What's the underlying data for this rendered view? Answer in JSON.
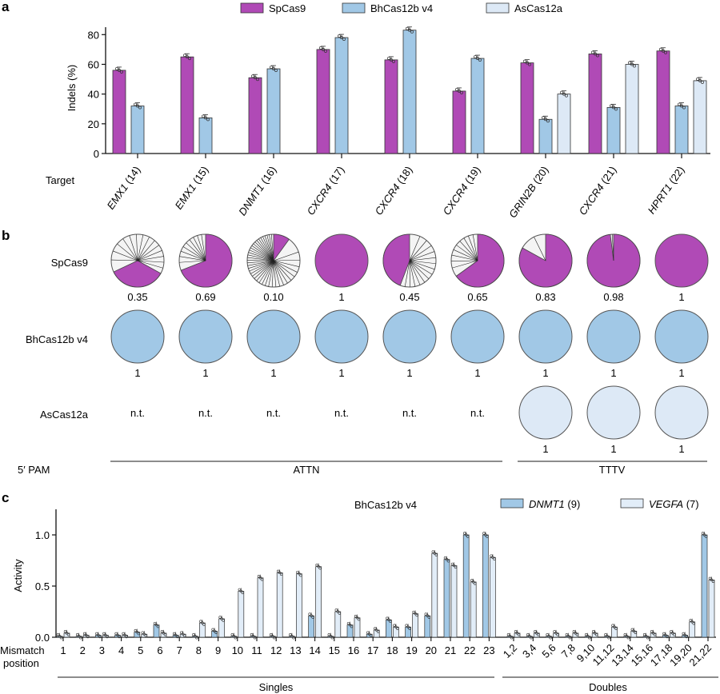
{
  "colors": {
    "spcas9": "#b04ab6",
    "bhcas12b": "#a1c8e6",
    "ascas12a": "#dde9f6",
    "dnmt1": "#a1c8e6",
    "vegfa": "#e2edf8",
    "other_allele": "#f4f4f4"
  },
  "chart_data": [
    {
      "panel": "a",
      "type": "bar",
      "ylabel": "Indels (%)",
      "xlabel": "Target",
      "ylim": [
        0,
        85
      ],
      "yticks": [
        0,
        20,
        40,
        60,
        80
      ],
      "legend": [
        "SpCas9",
        "BhCas12b v4",
        "AsCas12a"
      ],
      "legend_position": "top",
      "categories": [
        {
          "gene": "EMX1",
          "site": "(14)"
        },
        {
          "gene": "EMX1",
          "site": "(15)"
        },
        {
          "gene": "DNMT1",
          "site": "(16)"
        },
        {
          "gene": "CXCR4",
          "site": "(17)"
        },
        {
          "gene": "CXCR4",
          "site": "(18)"
        },
        {
          "gene": "CXCR4",
          "site": "(19)"
        },
        {
          "gene": "GRIN2B",
          "site": "(20)"
        },
        {
          "gene": "CXCR4",
          "site": "(21)"
        },
        {
          "gene": "HPRT1",
          "site": "(22)"
        }
      ],
      "series": [
        {
          "name": "SpCas9",
          "values": [
            56,
            65,
            51,
            70,
            63,
            42,
            61,
            67,
            69
          ]
        },
        {
          "name": "BhCas12b v4",
          "values": [
            32,
            24,
            57,
            78,
            83,
            64,
            23,
            31,
            32
          ]
        },
        {
          "name": "AsCas12a",
          "values": [
            null,
            null,
            null,
            null,
            null,
            null,
            40,
            60,
            49
          ]
        }
      ]
    },
    {
      "panel": "b",
      "type": "pie",
      "description": "Fraction of indel reads that are the major outcome",
      "row_labels": [
        "SpCas9",
        "BhCas12b v4",
        "AsCas12a"
      ],
      "rows": [
        {
          "name": "SpCas9",
          "values": [
            "0.35",
            "0.69",
            "0.10",
            "1",
            "0.45",
            "0.65",
            "0.83",
            "0.98",
            "1"
          ],
          "fractions": [
            0.35,
            0.69,
            0.1,
            1,
            0.45,
            0.65,
            0.83,
            0.98,
            1
          ]
        },
        {
          "name": "BhCas12b v4",
          "values": [
            "1",
            "1",
            "1",
            "1",
            "1",
            "1",
            "1",
            "1",
            "1"
          ],
          "fractions": [
            1,
            1,
            1,
            1,
            1,
            1,
            1,
            1,
            1
          ]
        },
        {
          "name": "AsCas12a",
          "values": [
            "n.t.",
            "n.t.",
            "n.t.",
            "n.t.",
            "n.t.",
            "n.t.",
            "1",
            "1",
            "1"
          ],
          "fractions": [
            null,
            null,
            null,
            null,
            null,
            null,
            1,
            1,
            1
          ]
        }
      ],
      "pam_label": "5′ PAM",
      "pam_groups": [
        {
          "label": "ATTN",
          "count": 6
        },
        {
          "label": "TTTV",
          "count": 3
        }
      ]
    },
    {
      "panel": "c",
      "type": "bar",
      "title": "BhCas12b v4",
      "ylabel": "Activity",
      "xlabel": "Mismatch position",
      "ylim": [
        0,
        1.25
      ],
      "yticks": [
        "0.0",
        "0.5",
        "1.0"
      ],
      "legend": [
        {
          "gene": "DNMT1",
          "site": "(9)"
        },
        {
          "gene": "VEGFA",
          "site": "(7)"
        }
      ],
      "legend_position": "top-right",
      "categories": [
        "1",
        "2",
        "3",
        "4",
        "5",
        "6",
        "7",
        "8",
        "9",
        "10",
        "11",
        "12",
        "13",
        "14",
        "15",
        "16",
        "17",
        "18",
        "19",
        "20",
        "21",
        "22",
        "23",
        "1,2",
        "3,4",
        "5,6",
        "7,8",
        "9,10",
        "11,12",
        "13,14",
        "15,16",
        "17,18",
        "19,20",
        "21,22"
      ],
      "groups": [
        {
          "label": "Singles",
          "count": 23
        },
        {
          "label": "Doubles",
          "count": 11
        }
      ],
      "series": [
        {
          "name": "DNMT1 (9)",
          "values": [
            0.01,
            0.01,
            0.02,
            0.02,
            0.05,
            0.12,
            0.02,
            0.01,
            0.06,
            0.01,
            0.01,
            0.01,
            0.01,
            0.21,
            0.01,
            0.12,
            0.03,
            0.17,
            0.1,
            0.21,
            0.76,
            1.0,
            1.0,
            0.01,
            0.01,
            0.01,
            0.01,
            0.01,
            0.01,
            0.01,
            0.01,
            0.02,
            0.02,
            1.0
          ]
        },
        {
          "name": "VEGFA (7)",
          "values": [
            0.04,
            0.02,
            0.02,
            0.02,
            0.03,
            0.04,
            0.03,
            0.14,
            0.18,
            0.45,
            0.58,
            0.63,
            0.62,
            0.69,
            0.25,
            0.19,
            0.07,
            0.1,
            0.23,
            0.82,
            0.7,
            0.54,
            0.78,
            0.04,
            0.04,
            0.04,
            0.04,
            0.04,
            0.1,
            0.06,
            0.04,
            0.04,
            0.15,
            0.56
          ]
        }
      ]
    }
  ],
  "panel_labels": {
    "a": "a",
    "b": "b",
    "c": "c"
  }
}
